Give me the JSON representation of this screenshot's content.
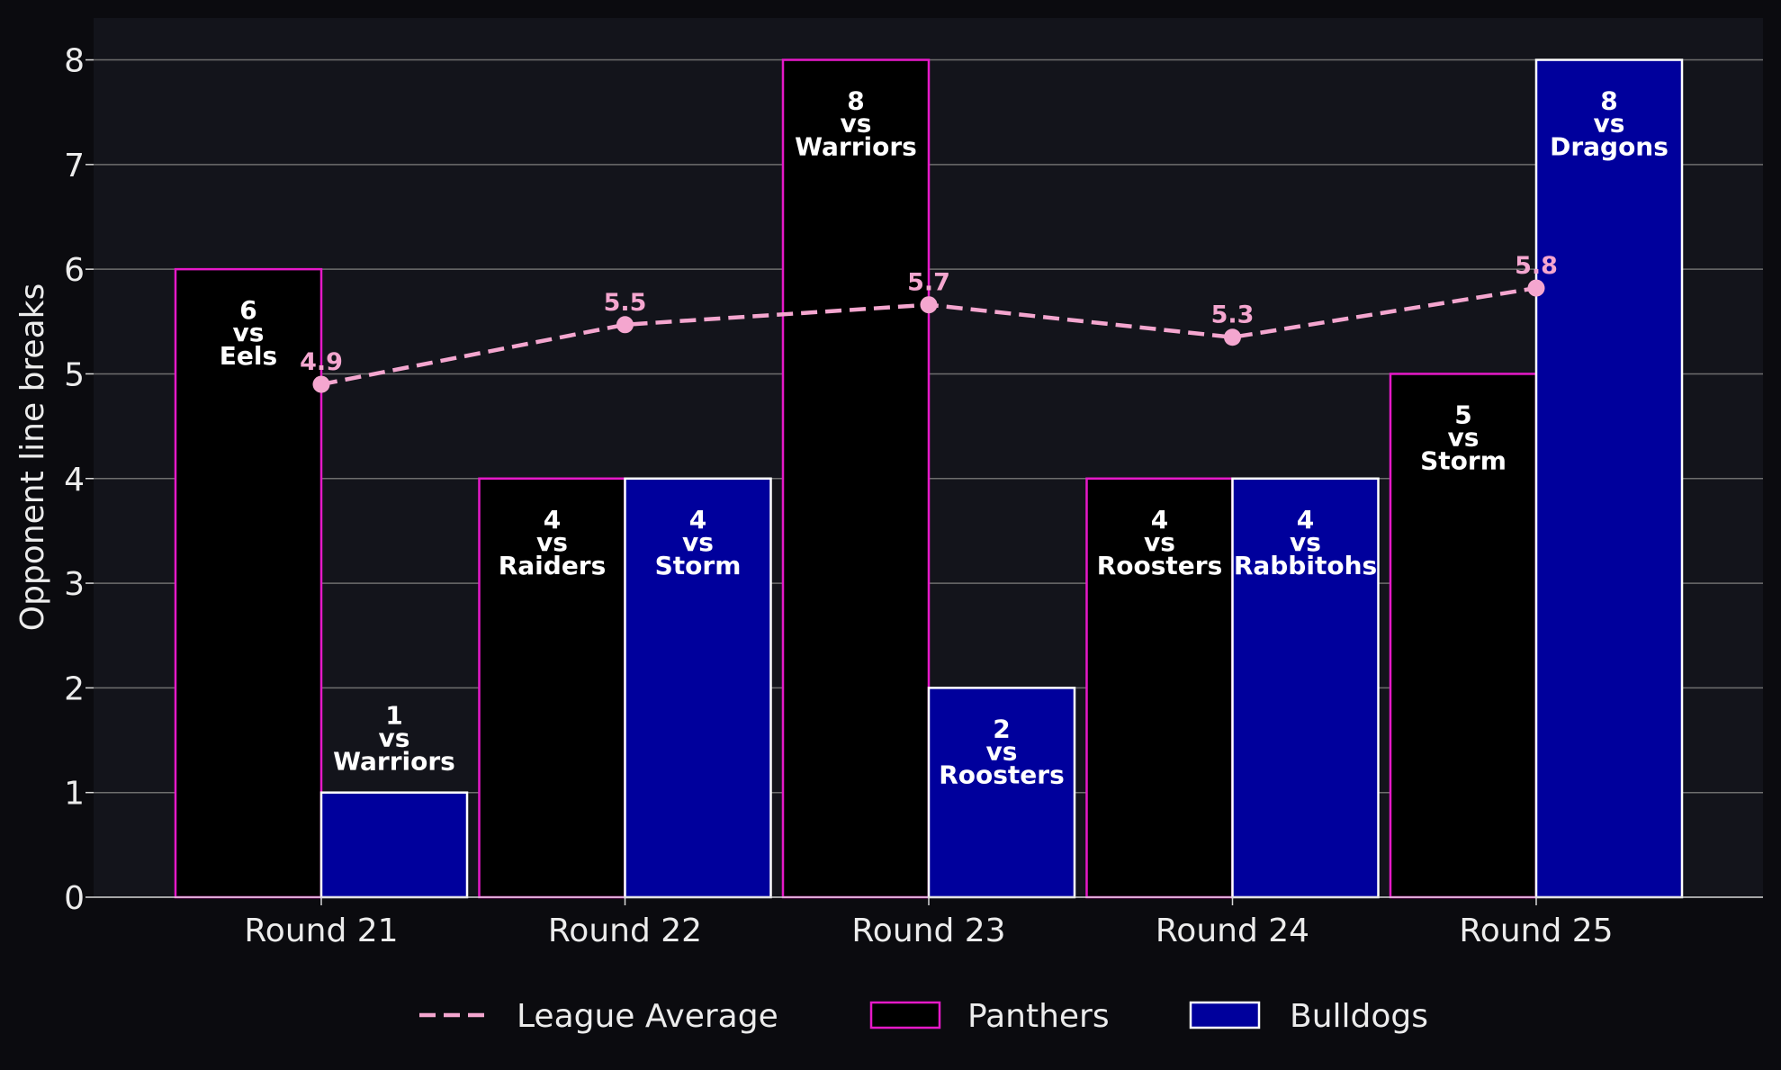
{
  "chart_data": {
    "type": "bar",
    "categories": [
      "Round 21",
      "Round 22",
      "Round 23",
      "Round 24",
      "Round 25"
    ],
    "ylabel": "Opponent line breaks",
    "ylim": [
      0,
      8.4
    ],
    "yticks": [
      "0",
      "1",
      "2",
      "3",
      "4",
      "5",
      "6",
      "7",
      "8"
    ],
    "grid": true,
    "legend_position": "bottom-center",
    "series": [
      {
        "name": "Panthers",
        "kind": "bar",
        "values": [
          6,
          4,
          8,
          4,
          5
        ],
        "opponents": [
          "Eels",
          "Raiders",
          "Warriors",
          "Roosters",
          "Storm"
        ],
        "fill": "#000000",
        "edge": "#e619c8"
      },
      {
        "name": "Bulldogs",
        "kind": "bar",
        "values": [
          1,
          4,
          2,
          4,
          8
        ],
        "opponents": [
          "Warriors",
          "Storm",
          "Roosters",
          "Rabbitohs",
          "Dragons"
        ],
        "fill": "#00009c",
        "edge": "#ffffff"
      },
      {
        "name": "League Average",
        "kind": "line",
        "style": "dashed",
        "values": [
          4.9,
          5.47,
          5.66,
          5.35,
          5.82
        ],
        "labels": [
          "4.9",
          "5.5",
          "5.7",
          "5.3",
          "5.8"
        ],
        "color": "#f4a6cf"
      }
    ],
    "vs_text": "vs"
  },
  "colors": {
    "background": "#0b0b0f",
    "plot_background": "#13141b",
    "grid": "#6e6e6e",
    "text": "#ffffff",
    "average_label": "#f4a6cf"
  }
}
